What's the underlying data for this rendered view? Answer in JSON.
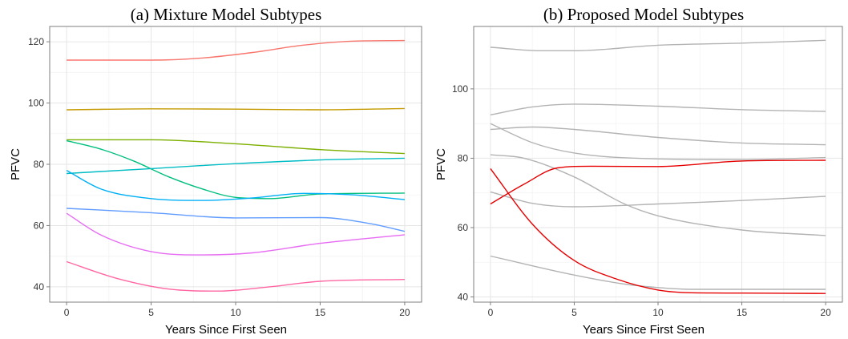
{
  "chart_data": [
    {
      "type": "line",
      "title": "(a) Mixture Model Subtypes",
      "xlabel": "Years Since First Seen",
      "ylabel": "PFVC",
      "xlim": [
        -1,
        21
      ],
      "ylim": [
        35,
        125
      ],
      "xticks": [
        0,
        5,
        10,
        15,
        20
      ],
      "yticks": [
        40,
        60,
        80,
        100,
        120
      ],
      "grid": true,
      "series": [
        {
          "color": "#f8766d",
          "x": [
            0,
            5,
            8,
            11,
            14,
            17,
            20
          ],
          "y": [
            114,
            114,
            114.7,
            116.5,
            118.9,
            120.2,
            120.4
          ]
        },
        {
          "color": "#c49a00",
          "x": [
            0,
            5,
            10,
            15,
            20
          ],
          "y": [
            97.8,
            98.1,
            98,
            97.8,
            98.2
          ]
        },
        {
          "color": "#7caf00",
          "x": [
            0,
            5,
            10,
            15,
            20
          ],
          "y": [
            88,
            88,
            86.7,
            84.8,
            83.5
          ]
        },
        {
          "color": "#00bf7d",
          "x": [
            0,
            2,
            4,
            6,
            8,
            10,
            12,
            15,
            20
          ],
          "y": [
            87.7,
            85,
            81,
            76,
            72,
            69.2,
            68.8,
            70.3,
            70.6
          ]
        },
        {
          "color": "#00bcc4",
          "x": [
            0,
            5,
            10,
            15,
            20
          ],
          "y": [
            77,
            78.6,
            80.2,
            81.4,
            82
          ]
        },
        {
          "color": "#00b0f6",
          "x": [
            0,
            2,
            5,
            8,
            11,
            14,
            17,
            20
          ],
          "y": [
            78,
            72,
            68.8,
            68.2,
            69,
            70.5,
            70,
            68.5
          ]
        },
        {
          "color": "#619cff",
          "x": [
            0,
            5,
            10,
            15,
            18,
            20
          ],
          "y": [
            65.6,
            64.2,
            62.5,
            62.6,
            60.6,
            58.1
          ]
        },
        {
          "color": "#e76bf3",
          "x": [
            0,
            2,
            5,
            8,
            11,
            15,
            20
          ],
          "y": [
            64,
            57,
            51.5,
            50.4,
            51.1,
            54.2,
            57
          ]
        },
        {
          "color": "#ff67a4",
          "x": [
            0,
            3,
            6,
            9,
            12,
            15,
            20
          ],
          "y": [
            48.2,
            42.7,
            39.3,
            38.6,
            40,
            41.8,
            42.4
          ]
        }
      ]
    },
    {
      "type": "line",
      "title": "(b) Proposed Model Subtypes",
      "xlabel": "Years Since First Seen",
      "ylabel": "PFVC",
      "xlim": [
        -1,
        21
      ],
      "ylim": [
        38.5,
        118
      ],
      "xticks": [
        0,
        5,
        10,
        15,
        20
      ],
      "yticks": [
        40,
        60,
        80,
        100
      ],
      "grid": true,
      "series": [
        {
          "color": "#b3b3b3",
          "x": [
            0,
            3,
            5,
            10,
            15,
            20
          ],
          "y": [
            112,
            111,
            111,
            112.6,
            113.2,
            114
          ]
        },
        {
          "color": "#b3b3b3",
          "x": [
            0,
            2.5,
            5,
            10,
            15,
            20
          ],
          "y": [
            92.5,
            94.8,
            95.6,
            95,
            94,
            93.5
          ]
        },
        {
          "color": "#b3b3b3",
          "x": [
            0,
            2.5,
            5,
            10,
            15,
            20
          ],
          "y": [
            88.3,
            89,
            88.3,
            86,
            84.4,
            83.9
          ]
        },
        {
          "color": "#b3b3b3",
          "x": [
            0,
            2.5,
            5,
            10,
            15,
            20
          ],
          "y": [
            90,
            84.5,
            81.5,
            79.8,
            79.6,
            80.2
          ]
        },
        {
          "color": "#b3b3b3",
          "x": [
            0,
            2,
            5,
            8,
            10,
            15,
            20
          ],
          "y": [
            81,
            80,
            74.6,
            66.8,
            63.4,
            59.3,
            57.7
          ]
        },
        {
          "color": "#b3b3b3",
          "x": [
            0,
            2.5,
            5,
            10,
            15,
            20
          ],
          "y": [
            70.3,
            67,
            66,
            66.8,
            67.8,
            69
          ]
        },
        {
          "color": "#b3b3b3",
          "x": [
            0,
            5,
            8,
            10,
            12,
            15,
            20
          ],
          "y": [
            51.8,
            46.3,
            43.7,
            42.7,
            42.2,
            42.2,
            42.2
          ]
        },
        {
          "color": "#e60000",
          "x": [
            0,
            2,
            4,
            6,
            10,
            15,
            20
          ],
          "y": [
            66.8,
            72.5,
            77.2,
            77.7,
            77.6,
            79.2,
            79.4
          ]
        },
        {
          "color": "#e60000",
          "x": [
            0,
            2.5,
            5,
            7.5,
            10,
            12,
            15,
            20
          ],
          "y": [
            77,
            61,
            50.5,
            45.2,
            42,
            41.2,
            41.1,
            41
          ]
        }
      ]
    }
  ]
}
